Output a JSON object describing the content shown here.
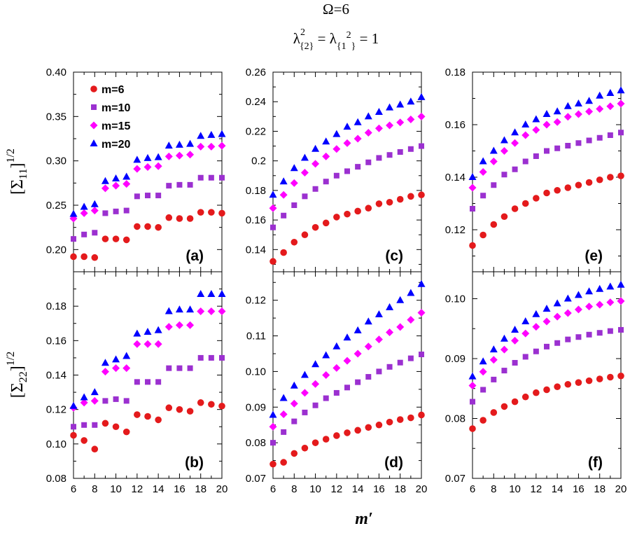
{
  "title": {
    "line1": "Ω=6",
    "line2_lambda": "λ",
    "line2_sup": "2",
    "line2_sub": "{2}",
    "line2_eq": " = λ",
    "line2_sub2": "{1",
    "line2_sup2": "2",
    "line2_sub2_end": "}",
    "line2_rhs": " = 1"
  },
  "xlabel": "m′",
  "ylabels": {
    "top": {
      "base": "[Σ",
      "sub": "11",
      "close": "]",
      "sup": "1/2"
    },
    "bottom": {
      "base": "[Σ",
      "sub": "22",
      "close": "]",
      "sup": "1/2"
    }
  },
  "colors": {
    "m6": "#e41a1c",
    "m10": "#9b30d0",
    "m15": "#ff00ff",
    "m20": "#0000ff"
  },
  "legend": {
    "placement": "top-left of panel (a)",
    "entries": [
      {
        "label": "m=6",
        "marker": "circle",
        "color": "#e41a1c"
      },
      {
        "label": "m=10",
        "marker": "square",
        "color": "#9b30d0"
      },
      {
        "label": "m=15",
        "marker": "diamond",
        "color": "#ff00ff"
      },
      {
        "label": "m=20",
        "marker": "triangle",
        "color": "#0000ff"
      }
    ]
  },
  "chart_data": [
    {
      "panel": "a",
      "label": "(a)",
      "type": "scatter",
      "xlim": [
        6,
        20
      ],
      "ylim": [
        0.175,
        0.4
      ],
      "xticks": [
        6,
        8,
        10,
        12,
        14,
        16,
        18,
        20
      ],
      "yticks": [
        0.2,
        0.25,
        0.3,
        0.35,
        0.4
      ],
      "ytick_labels": [
        "0.20",
        "0.25",
        "0.30",
        "0.35",
        "0.40"
      ],
      "series": [
        {
          "name": "m=6",
          "x": [
            6,
            7,
            8,
            9,
            10,
            11,
            12,
            13,
            14,
            15,
            16,
            17,
            18,
            19,
            20
          ],
          "y": [
            0.192,
            0.192,
            0.191,
            0.212,
            0.212,
            0.211,
            0.226,
            0.226,
            0.225,
            0.236,
            0.235,
            0.235,
            0.242,
            0.242,
            0.241
          ]
        },
        {
          "name": "m=10",
          "x": [
            6,
            7,
            8,
            9,
            10,
            11,
            12,
            13,
            14,
            15,
            16,
            17,
            18,
            19,
            20
          ],
          "y": [
            0.212,
            0.217,
            0.219,
            0.241,
            0.243,
            0.244,
            0.26,
            0.261,
            0.261,
            0.272,
            0.273,
            0.273,
            0.281,
            0.281,
            0.281
          ]
        },
        {
          "name": "m=15",
          "x": [
            6,
            7,
            8,
            9,
            10,
            11,
            12,
            13,
            14,
            15,
            16,
            17,
            18,
            19,
            20
          ],
          "y": [
            0.235,
            0.241,
            0.244,
            0.269,
            0.272,
            0.274,
            0.291,
            0.293,
            0.294,
            0.305,
            0.306,
            0.307,
            0.316,
            0.316,
            0.317
          ]
        },
        {
          "name": "m=20",
          "x": [
            6,
            7,
            8,
            9,
            10,
            11,
            12,
            13,
            14,
            15,
            16,
            17,
            18,
            19,
            20
          ],
          "y": [
            0.24,
            0.248,
            0.251,
            0.277,
            0.28,
            0.282,
            0.301,
            0.303,
            0.304,
            0.317,
            0.318,
            0.319,
            0.328,
            0.329,
            0.33
          ]
        }
      ]
    },
    {
      "panel": "b",
      "label": "(b)",
      "type": "scatter",
      "xlim": [
        6,
        20
      ],
      "ylim": [
        0.08,
        0.2
      ],
      "xticks": [
        6,
        8,
        10,
        12,
        14,
        16,
        18,
        20
      ],
      "xtick_labels": [
        "6",
        "8",
        "10",
        "12",
        "14",
        "16",
        "18",
        "20"
      ],
      "yticks": [
        0.08,
        0.1,
        0.12,
        0.14,
        0.16,
        0.18
      ],
      "ytick_labels": [
        "0.08",
        "0.10",
        "0.12",
        "0.14",
        "0.16",
        "0.18"
      ],
      "series": [
        {
          "name": "m=6",
          "x": [
            6,
            7,
            8,
            9,
            10,
            11,
            12,
            13,
            14,
            15,
            16,
            17,
            18,
            19,
            20
          ],
          "y": [
            0.105,
            0.102,
            0.097,
            0.112,
            0.11,
            0.107,
            0.117,
            0.116,
            0.114,
            0.121,
            0.12,
            0.119,
            0.124,
            0.123,
            0.122
          ]
        },
        {
          "name": "m=10",
          "x": [
            6,
            7,
            8,
            9,
            10,
            11,
            12,
            13,
            14,
            15,
            16,
            17,
            18,
            19,
            20
          ],
          "y": [
            0.11,
            0.111,
            0.111,
            0.125,
            0.126,
            0.125,
            0.136,
            0.136,
            0.136,
            0.144,
            0.144,
            0.144,
            0.15,
            0.15,
            0.15
          ]
        },
        {
          "name": "m=15",
          "x": [
            6,
            7,
            8,
            9,
            10,
            11,
            12,
            13,
            14,
            15,
            16,
            17,
            18,
            19,
            20
          ],
          "y": [
            0.121,
            0.124,
            0.125,
            0.142,
            0.144,
            0.144,
            0.158,
            0.158,
            0.158,
            0.168,
            0.169,
            0.169,
            0.177,
            0.177,
            0.177
          ]
        },
        {
          "name": "m=20",
          "x": [
            6,
            7,
            8,
            9,
            10,
            11,
            12,
            13,
            14,
            15,
            16,
            17,
            18,
            19,
            20
          ],
          "y": [
            0.122,
            0.127,
            0.13,
            0.147,
            0.149,
            0.151,
            0.164,
            0.165,
            0.166,
            0.177,
            0.178,
            0.178,
            0.187,
            0.187,
            0.187
          ]
        }
      ]
    },
    {
      "panel": "c",
      "label": "(c)",
      "type": "scatter",
      "xlim": [
        6,
        20
      ],
      "ylim": [
        0.125,
        0.26
      ],
      "xticks": [
        6,
        8,
        10,
        12,
        14,
        16,
        18,
        20
      ],
      "yticks": [
        0.14,
        0.16,
        0.18,
        0.2,
        0.22,
        0.24,
        0.26
      ],
      "ytick_labels": [
        "0.14",
        "0.16",
        "0.18",
        "0.2",
        "0.22",
        "0.24",
        "0.26"
      ],
      "series": [
        {
          "name": "m=6",
          "x": [
            6,
            7,
            8,
            9,
            10,
            11,
            12,
            13,
            14,
            15,
            16,
            17,
            18,
            19,
            20
          ],
          "y": [
            0.132,
            0.138,
            0.145,
            0.15,
            0.155,
            0.158,
            0.162,
            0.164,
            0.166,
            0.168,
            0.171,
            0.172,
            0.174,
            0.176,
            0.177
          ]
        },
        {
          "name": "m=10",
          "x": [
            6,
            7,
            8,
            9,
            10,
            11,
            12,
            13,
            14,
            15,
            16,
            17,
            18,
            19,
            20
          ],
          "y": [
            0.155,
            0.163,
            0.17,
            0.176,
            0.181,
            0.186,
            0.19,
            0.193,
            0.196,
            0.199,
            0.202,
            0.204,
            0.206,
            0.208,
            0.21
          ]
        },
        {
          "name": "m=15",
          "x": [
            6,
            7,
            8,
            9,
            10,
            11,
            12,
            13,
            14,
            15,
            16,
            17,
            18,
            19,
            20
          ],
          "y": [
            0.168,
            0.177,
            0.185,
            0.192,
            0.198,
            0.203,
            0.208,
            0.212,
            0.215,
            0.219,
            0.222,
            0.224,
            0.226,
            0.228,
            0.23
          ]
        },
        {
          "name": "m=20",
          "x": [
            6,
            7,
            8,
            9,
            10,
            11,
            12,
            13,
            14,
            15,
            16,
            17,
            18,
            19,
            20
          ],
          "y": [
            0.177,
            0.186,
            0.195,
            0.202,
            0.208,
            0.213,
            0.218,
            0.223,
            0.226,
            0.23,
            0.233,
            0.236,
            0.238,
            0.24,
            0.243
          ]
        }
      ]
    },
    {
      "panel": "d",
      "label": "(d)",
      "type": "scatter",
      "xlim": [
        6,
        20
      ],
      "ylim": [
        0.07,
        0.128
      ],
      "xticks": [
        6,
        8,
        10,
        12,
        14,
        16,
        18,
        20
      ],
      "xtick_labels": [
        "6",
        "8",
        "10",
        "12",
        "14",
        "16",
        "18",
        "20"
      ],
      "yticks": [
        0.07,
        0.08,
        0.09,
        0.1,
        0.11,
        0.12
      ],
      "ytick_labels": [
        "0.07",
        "0.08",
        "0.09",
        "0.10",
        "0.11",
        "0.12"
      ],
      "series": [
        {
          "name": "m=6",
          "x": [
            6,
            7,
            8,
            9,
            10,
            11,
            12,
            13,
            14,
            15,
            16,
            17,
            18,
            19,
            20
          ],
          "y": [
            0.074,
            0.0745,
            0.077,
            0.0785,
            0.08,
            0.081,
            0.082,
            0.0828,
            0.0835,
            0.0843,
            0.085,
            0.0858,
            0.0865,
            0.087,
            0.0878
          ]
        },
        {
          "name": "m=10",
          "x": [
            6,
            7,
            8,
            9,
            10,
            11,
            12,
            13,
            14,
            15,
            16,
            17,
            18,
            19,
            20
          ],
          "y": [
            0.08,
            0.083,
            0.086,
            0.0885,
            0.0905,
            0.0925,
            0.094,
            0.0955,
            0.097,
            0.0985,
            0.1,
            0.1013,
            0.1025,
            0.1037,
            0.1048
          ]
        },
        {
          "name": "m=15",
          "x": [
            6,
            7,
            8,
            9,
            10,
            11,
            12,
            13,
            14,
            15,
            16,
            17,
            18,
            19,
            20
          ],
          "y": [
            0.0845,
            0.088,
            0.091,
            0.094,
            0.0965,
            0.099,
            0.101,
            0.103,
            0.105,
            0.107,
            0.109,
            0.111,
            0.1125,
            0.1145,
            0.1165
          ]
        },
        {
          "name": "m=20",
          "x": [
            6,
            7,
            8,
            9,
            10,
            11,
            12,
            13,
            14,
            15,
            16,
            17,
            18,
            19,
            20
          ],
          "y": [
            0.0878,
            0.0925,
            0.096,
            0.099,
            0.102,
            0.1045,
            0.107,
            0.1095,
            0.1115,
            0.114,
            0.116,
            0.118,
            0.12,
            0.122,
            0.1245
          ]
        }
      ]
    },
    {
      "panel": "e",
      "label": "(e)",
      "type": "scatter",
      "xlim": [
        6,
        20
      ],
      "ylim": [
        0.104,
        0.18
      ],
      "xticks": [
        6,
        8,
        10,
        12,
        14,
        16,
        18,
        20
      ],
      "yticks": [
        0.12,
        0.14,
        0.16,
        0.18
      ],
      "ytick_labels": [
        "0.12",
        "0.14",
        "0.16",
        "0.18"
      ],
      "series": [
        {
          "name": "m=6",
          "x": [
            6,
            7,
            8,
            9,
            10,
            11,
            12,
            13,
            14,
            15,
            16,
            17,
            18,
            19,
            20
          ],
          "y": [
            0.114,
            0.118,
            0.122,
            0.125,
            0.128,
            0.13,
            0.132,
            0.134,
            0.135,
            0.136,
            0.137,
            0.138,
            0.139,
            0.14,
            0.1405
          ]
        },
        {
          "name": "m=10",
          "x": [
            6,
            7,
            8,
            9,
            10,
            11,
            12,
            13,
            14,
            15,
            16,
            17,
            18,
            19,
            20
          ],
          "y": [
            0.128,
            0.133,
            0.137,
            0.141,
            0.143,
            0.146,
            0.148,
            0.15,
            0.151,
            0.152,
            0.153,
            0.154,
            0.155,
            0.156,
            0.157
          ]
        },
        {
          "name": "m=15",
          "x": [
            6,
            7,
            8,
            9,
            10,
            11,
            12,
            13,
            14,
            15,
            16,
            17,
            18,
            19,
            20
          ],
          "y": [
            0.136,
            0.142,
            0.146,
            0.15,
            0.153,
            0.156,
            0.158,
            0.16,
            0.161,
            0.163,
            0.164,
            0.165,
            0.166,
            0.167,
            0.168
          ]
        },
        {
          "name": "m=20",
          "x": [
            6,
            7,
            8,
            9,
            10,
            11,
            12,
            13,
            14,
            15,
            16,
            17,
            18,
            19,
            20
          ],
          "y": [
            0.14,
            0.146,
            0.15,
            0.154,
            0.157,
            0.16,
            0.162,
            0.164,
            0.165,
            0.167,
            0.168,
            0.169,
            0.171,
            0.172,
            0.173
          ]
        }
      ]
    },
    {
      "panel": "f",
      "label": "(f)",
      "type": "scatter",
      "xlim": [
        6,
        20
      ],
      "ylim": [
        0.07,
        0.1045
      ],
      "xticks": [
        6,
        8,
        10,
        12,
        14,
        16,
        18,
        20
      ],
      "xtick_labels": [
        "6",
        "8",
        "10",
        "12",
        "14",
        "16",
        "18",
        "20"
      ],
      "yticks": [
        0.07,
        0.08,
        0.09,
        0.1
      ],
      "ytick_labels": [
        "0.07",
        "0.08",
        "0.09",
        "0.10"
      ],
      "series": [
        {
          "name": "m=6",
          "x": [
            6,
            7,
            8,
            9,
            10,
            11,
            12,
            13,
            14,
            15,
            16,
            17,
            18,
            19,
            20
          ],
          "y": [
            0.0783,
            0.0797,
            0.081,
            0.082,
            0.0828,
            0.0836,
            0.0843,
            0.0848,
            0.0853,
            0.0857,
            0.086,
            0.0863,
            0.0866,
            0.0869,
            0.0871
          ]
        },
        {
          "name": "m=10",
          "x": [
            6,
            7,
            8,
            9,
            10,
            11,
            12,
            13,
            14,
            15,
            16,
            17,
            18,
            19,
            20
          ],
          "y": [
            0.0828,
            0.0848,
            0.0865,
            0.088,
            0.0893,
            0.0903,
            0.0912,
            0.092,
            0.0926,
            0.0932,
            0.0936,
            0.094,
            0.0943,
            0.0946,
            0.0948
          ]
        },
        {
          "name": "m=15",
          "x": [
            6,
            7,
            8,
            9,
            10,
            11,
            12,
            13,
            14,
            15,
            16,
            17,
            18,
            19,
            20
          ],
          "y": [
            0.0855,
            0.0878,
            0.0898,
            0.0915,
            0.093,
            0.0942,
            0.0953,
            0.0962,
            0.097,
            0.0976,
            0.0982,
            0.0987,
            0.099,
            0.0994,
            0.0996
          ]
        },
        {
          "name": "m=20",
          "x": [
            6,
            7,
            8,
            9,
            10,
            11,
            12,
            13,
            14,
            15,
            16,
            17,
            18,
            19,
            20
          ],
          "y": [
            0.087,
            0.0895,
            0.0915,
            0.0933,
            0.0948,
            0.0962,
            0.0974,
            0.0983,
            0.0992,
            0.1,
            0.1006,
            0.1012,
            0.1016,
            0.102,
            0.1023
          ]
        }
      ]
    }
  ]
}
